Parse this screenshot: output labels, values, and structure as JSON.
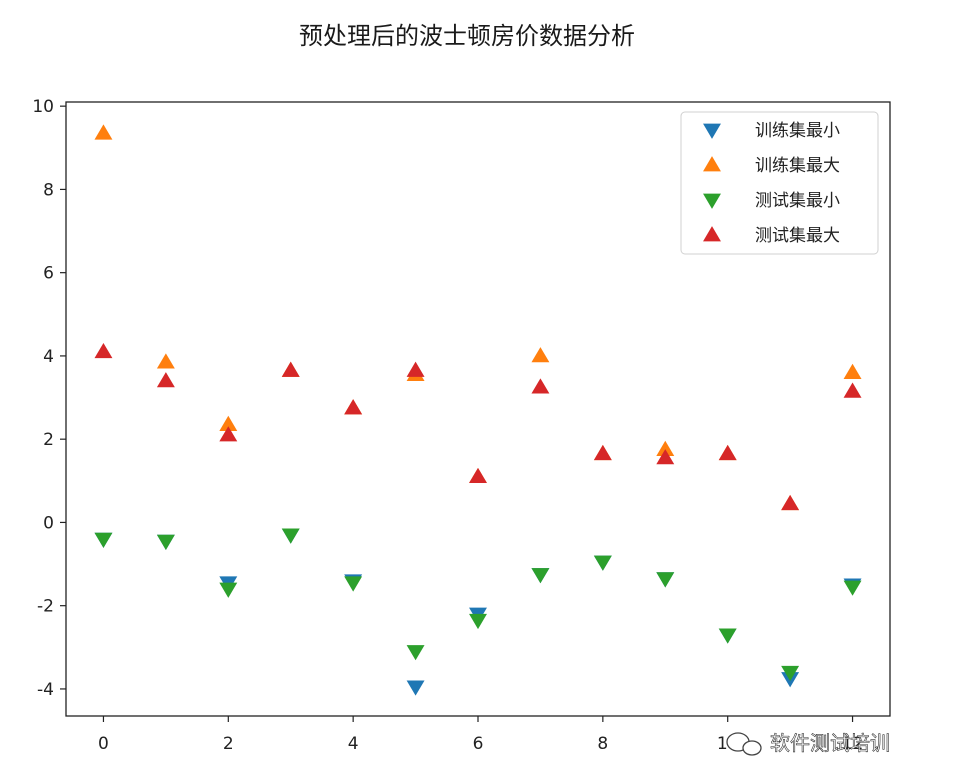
{
  "chart_data": {
    "type": "scatter",
    "title": "预处理后的波士顿房价数据分析",
    "xlabel": "",
    "ylabel": "",
    "xlim": [
      -0.6,
      12.6
    ],
    "ylim": [
      -4.65,
      10.1
    ],
    "x_ticks": [
      0,
      2,
      4,
      6,
      8,
      10,
      12
    ],
    "y_ticks": [
      -4,
      -2,
      0,
      2,
      4,
      6,
      8,
      10
    ],
    "legend_position": "top-right",
    "grid": false,
    "x": [
      0,
      1,
      2,
      3,
      4,
      5,
      6,
      7,
      8,
      9,
      10,
      11,
      12
    ],
    "series": [
      {
        "name": "训练集最小",
        "marker": "triangle-down",
        "color": "#1f77b4",
        "values": [
          -0.4,
          -0.45,
          -1.45,
          -0.3,
          -1.4,
          -3.95,
          -2.2,
          -1.25,
          -0.95,
          -1.35,
          -2.7,
          -3.75,
          -1.5
        ]
      },
      {
        "name": "训练集最大",
        "marker": "triangle-up",
        "color": "#ff7f0e",
        "values": [
          9.35,
          3.85,
          2.35,
          3.65,
          2.75,
          3.55,
          1.1,
          4.0,
          1.65,
          1.75,
          1.65,
          0.45,
          3.6
        ]
      },
      {
        "name": "测试集最小",
        "marker": "triangle-down",
        "color": "#2ca02c",
        "values": [
          -0.4,
          -0.45,
          -1.6,
          -0.3,
          -1.45,
          -3.1,
          -2.35,
          -1.25,
          -0.95,
          -1.35,
          -2.7,
          -3.6,
          -1.55
        ]
      },
      {
        "name": "测试集最大",
        "marker": "triangle-up",
        "color": "#d62728",
        "values": [
          4.1,
          3.4,
          2.1,
          3.65,
          2.75,
          3.65,
          1.1,
          3.25,
          1.65,
          1.55,
          1.65,
          0.45,
          3.15
        ]
      }
    ]
  },
  "watermark": {
    "text": "软件测试培训",
    "icon": "wechat-icon"
  }
}
